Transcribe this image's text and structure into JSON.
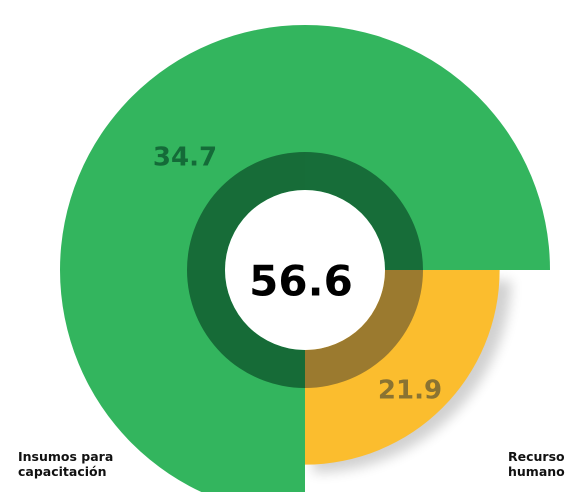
{
  "chart_data": {
    "type": "radial",
    "categories": [
      "Insumos para capacitación",
      "Recurso humano"
    ],
    "values": [
      34.7,
      21.9
    ],
    "colors": [
      "#33b55e",
      "#fbbd2e"
    ],
    "total": 56.6
  }
}
